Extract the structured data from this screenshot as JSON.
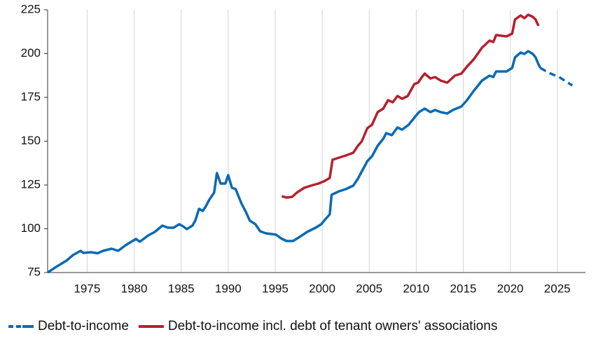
{
  "chart_data": {
    "type": "line",
    "xlim": [
      1970.8,
      2028
    ],
    "xticks": [
      1975,
      1980,
      1985,
      1990,
      1995,
      2000,
      2005,
      2010,
      2015,
      2020,
      2025
    ],
    "ylim": [
      75,
      225
    ],
    "yticks": [
      75,
      100,
      125,
      150,
      175,
      200,
      225
    ],
    "grid": true,
    "legend": "bottom",
    "series": [
      {
        "name": "Debt-to-income",
        "color": "#0a6ab4",
        "x": [
          1970.8,
          1971.7,
          1972.8,
          1973.5,
          1974.3,
          1974.6,
          1975.4,
          1976.1,
          1976.7,
          1977.6,
          1978.3,
          1979.1,
          1979.7,
          1980.2,
          1980.6,
          1981.5,
          1982.2,
          1983,
          1983.6,
          1984.2,
          1984.8,
          1985.2,
          1985.6,
          1986.2,
          1986.5,
          1986.9,
          1987.3,
          1987.6,
          1988,
          1988.5,
          1988.8,
          1989.2,
          1989.7,
          1990,
          1990.4,
          1990.8,
          1991.4,
          1991.9,
          1992.3,
          1992.9,
          1993.4,
          1994,
          1994.6,
          1995.1,
          1995.6,
          1996.2,
          1996.9,
          1997.5,
          1998.4,
          1999.3,
          1999.9,
          2000.4,
          2000.8,
          2001,
          2001.8,
          2002.5,
          2003.3,
          2003.8,
          2004.2,
          2004.8,
          2005.3,
          2005.9,
          2006.5,
          2006.8,
          2007.4,
          2008,
          2008.5,
          2009.2,
          2009.8,
          2010.3,
          2010.9,
          2011.5,
          2012,
          2012.6,
          2013.3,
          2013.9,
          2014.8,
          2015.4,
          2016.1,
          2017,
          2017.8,
          2018.2,
          2018.5,
          2019.6,
          2020.2,
          2020.5,
          2021.1,
          2021.5,
          2021.9,
          2022.4,
          2022.7,
          2023,
          2023.2
        ],
        "values": [
          75,
          78.2,
          81.8,
          85,
          87.4,
          86.2,
          86.6,
          86,
          87.4,
          88.6,
          87.4,
          90.6,
          92.6,
          94.2,
          92.6,
          96.2,
          98.2,
          101.8,
          100.6,
          100.6,
          102.6,
          101.4,
          99.8,
          101.8,
          104.6,
          111.4,
          110.2,
          112.6,
          116.6,
          120.6,
          131.8,
          125.8,
          125.8,
          130.6,
          123.4,
          122.6,
          114.6,
          109.4,
          104.6,
          102.6,
          98.6,
          97.4,
          97,
          96.6,
          94.6,
          93,
          93,
          95,
          98.2,
          100.6,
          102.6,
          105.8,
          108.2,
          119.4,
          121.4,
          122.6,
          124.6,
          128.6,
          132.6,
          138.6,
          141.4,
          147.4,
          151.4,
          154.6,
          153.4,
          157.8,
          156.6,
          159.4,
          163.4,
          166.6,
          168.6,
          166.6,
          167.8,
          166.6,
          165.8,
          167.8,
          169.8,
          173.4,
          178.6,
          184.6,
          187.4,
          186.6,
          189.8,
          189.8,
          191.8,
          197.8,
          200.6,
          199.8,
          201.4,
          199.8,
          197.8,
          193.8,
          191.8
        ]
      },
      {
        "name": "Debt-to-income incl. debt of tenant owners' associations",
        "color": "#b5202e",
        "x": [
          1995.7,
          1996.2,
          1996.8,
          1997.3,
          1998.1,
          1998.8,
          1999.6,
          2000.3,
          2000.8,
          2001.1,
          2001.8,
          2002.5,
          2003.3,
          2003.8,
          2004.2,
          2004.8,
          2005.3,
          2005.9,
          2006.5,
          2007,
          2007.5,
          2008,
          2008.5,
          2009.1,
          2009.8,
          2010.2,
          2010.6,
          2010.9,
          2011.5,
          2012,
          2012.6,
          2013.3,
          2014.1,
          2014.8,
          2015.4,
          2016.1,
          2017,
          2017.8,
          2018.2,
          2018.5,
          2019.6,
          2020.2,
          2020.5,
          2021.1,
          2021.5,
          2021.9,
          2022.4,
          2022.7,
          2023
        ],
        "values": [
          118.6,
          117.8,
          118.2,
          120.6,
          123.4,
          124.6,
          125.8,
          127.4,
          129,
          139.4,
          140.6,
          141.8,
          143.4,
          147.4,
          149.8,
          157.4,
          159.4,
          166.6,
          168.6,
          173.4,
          172.2,
          175.8,
          174.2,
          175.8,
          182.6,
          183.4,
          186.6,
          188.6,
          185.8,
          186.6,
          184.6,
          183.4,
          187.4,
          188.6,
          192.6,
          196.6,
          203.4,
          207.4,
          206.6,
          210.6,
          209.8,
          211.4,
          219.4,
          221.8,
          220.2,
          222.2,
          221,
          219.4,
          215.8
        ]
      },
      {
        "color": "#0a6ab4",
        "dashed": true,
        "x": [
          2023.2,
          2024.1,
          2025.2,
          2026.6
        ],
        "values": [
          191.8,
          189,
          186.6,
          181.8
        ]
      }
    ]
  }
}
